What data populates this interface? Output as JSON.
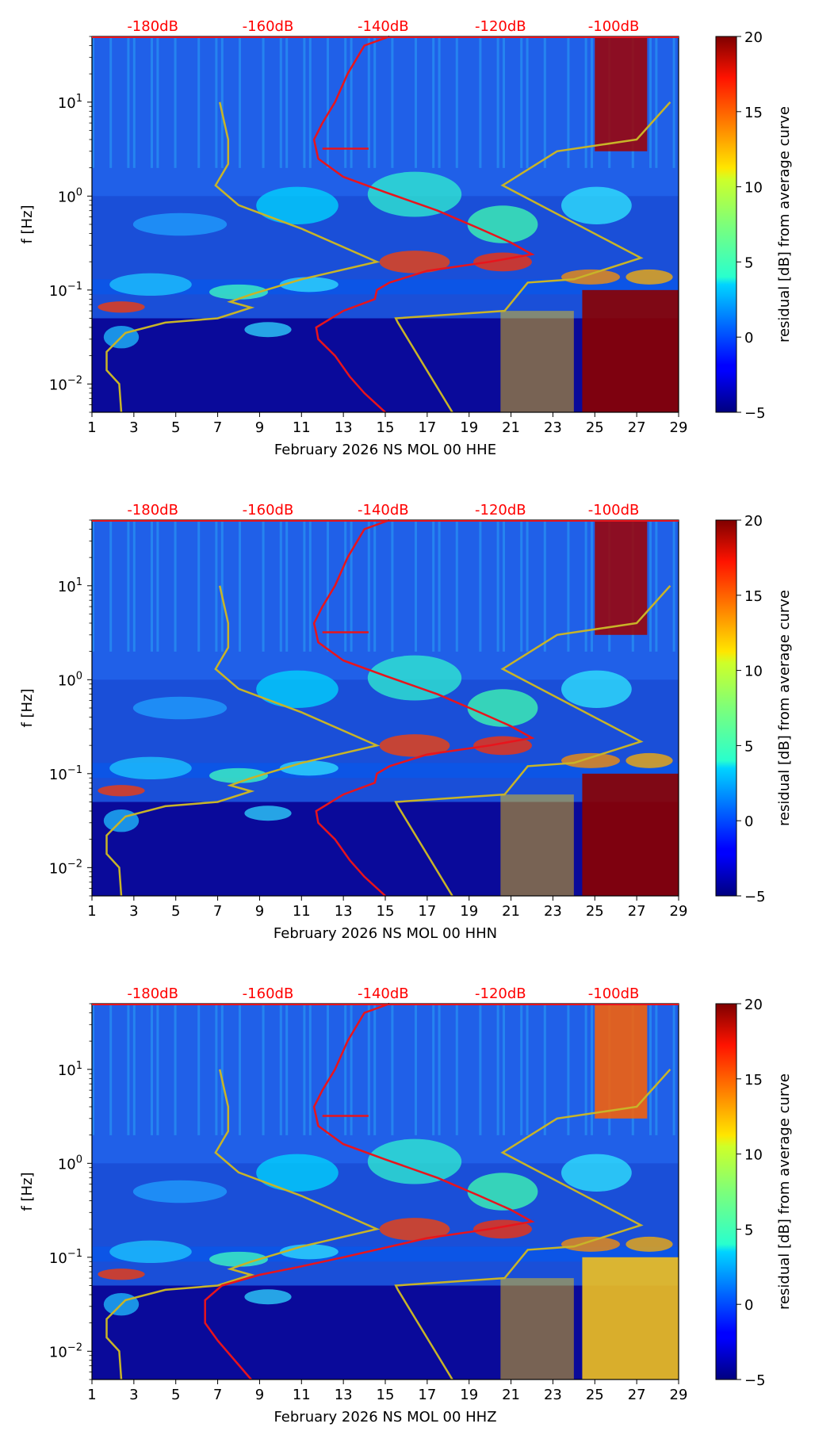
{
  "chart_data": [
    {
      "type": "heatmap",
      "xlabel": "February 2026 NS MOL 00 HHE",
      "ylabel": "f [Hz]",
      "x_ticks": [
        "1",
        "3",
        "5",
        "7",
        "9",
        "11",
        "13",
        "15",
        "17",
        "19",
        "21",
        "23",
        "25",
        "27",
        "29"
      ],
      "y_ticks": [
        {
          "base": "10",
          "exp": "1"
        },
        {
          "base": "10",
          "exp": "0"
        },
        {
          "base": "10",
          "exp": "−1"
        },
        {
          "base": "10",
          "exp": "−2"
        }
      ],
      "top_labels": [
        "-180dB",
        "-160dB",
        "-140dB",
        "-120dB",
        "-100dB"
      ],
      "colorbar_label": "residual [dB] from average curve",
      "colorbar_ticks": [
        "20",
        "15",
        "10",
        "5",
        "0",
        "−5"
      ],
      "clim": [
        -5,
        20
      ],
      "day_range": [
        1,
        29
      ],
      "freq_range_hz": [
        0.005,
        50
      ]
    },
    {
      "type": "heatmap",
      "xlabel": "February 2026 NS MOL 00 HHN",
      "ylabel": "f [Hz]",
      "x_ticks": [
        "1",
        "3",
        "5",
        "7",
        "9",
        "11",
        "13",
        "15",
        "17",
        "19",
        "21",
        "23",
        "25",
        "27",
        "29"
      ],
      "y_ticks": [
        {
          "base": "10",
          "exp": "1"
        },
        {
          "base": "10",
          "exp": "0"
        },
        {
          "base": "10",
          "exp": "−1"
        },
        {
          "base": "10",
          "exp": "−2"
        }
      ],
      "top_labels": [
        "-180dB",
        "-160dB",
        "-140dB",
        "-120dB",
        "-100dB"
      ],
      "colorbar_label": "residual [dB] from average curve",
      "colorbar_ticks": [
        "20",
        "15",
        "10",
        "5",
        "0",
        "−5"
      ],
      "clim": [
        -5,
        20
      ],
      "day_range": [
        1,
        29
      ],
      "freq_range_hz": [
        0.005,
        50
      ]
    },
    {
      "type": "heatmap",
      "xlabel": "February 2026 NS MOL 00 HHZ",
      "ylabel": "f [Hz]",
      "x_ticks": [
        "1",
        "3",
        "5",
        "7",
        "9",
        "11",
        "13",
        "15",
        "17",
        "19",
        "21",
        "23",
        "25",
        "27",
        "29"
      ],
      "y_ticks": [
        {
          "base": "10",
          "exp": "1"
        },
        {
          "base": "10",
          "exp": "0"
        },
        {
          "base": "10",
          "exp": "−1"
        },
        {
          "base": "10",
          "exp": "−2"
        }
      ],
      "top_labels": [
        "-180dB",
        "-160dB",
        "-140dB",
        "-120dB",
        "-100dB"
      ],
      "colorbar_label": "residual [dB] from average curve",
      "colorbar_ticks": [
        "20",
        "15",
        "10",
        "5",
        "0",
        "−5"
      ],
      "clim": [
        -5,
        20
      ],
      "day_range": [
        1,
        29
      ],
      "freq_range_hz": [
        0.005,
        50
      ]
    }
  ],
  "colors": {
    "curve_red": "#e8141c",
    "curve_yellow": "#c8b428",
    "top_label": "#ff0000"
  }
}
